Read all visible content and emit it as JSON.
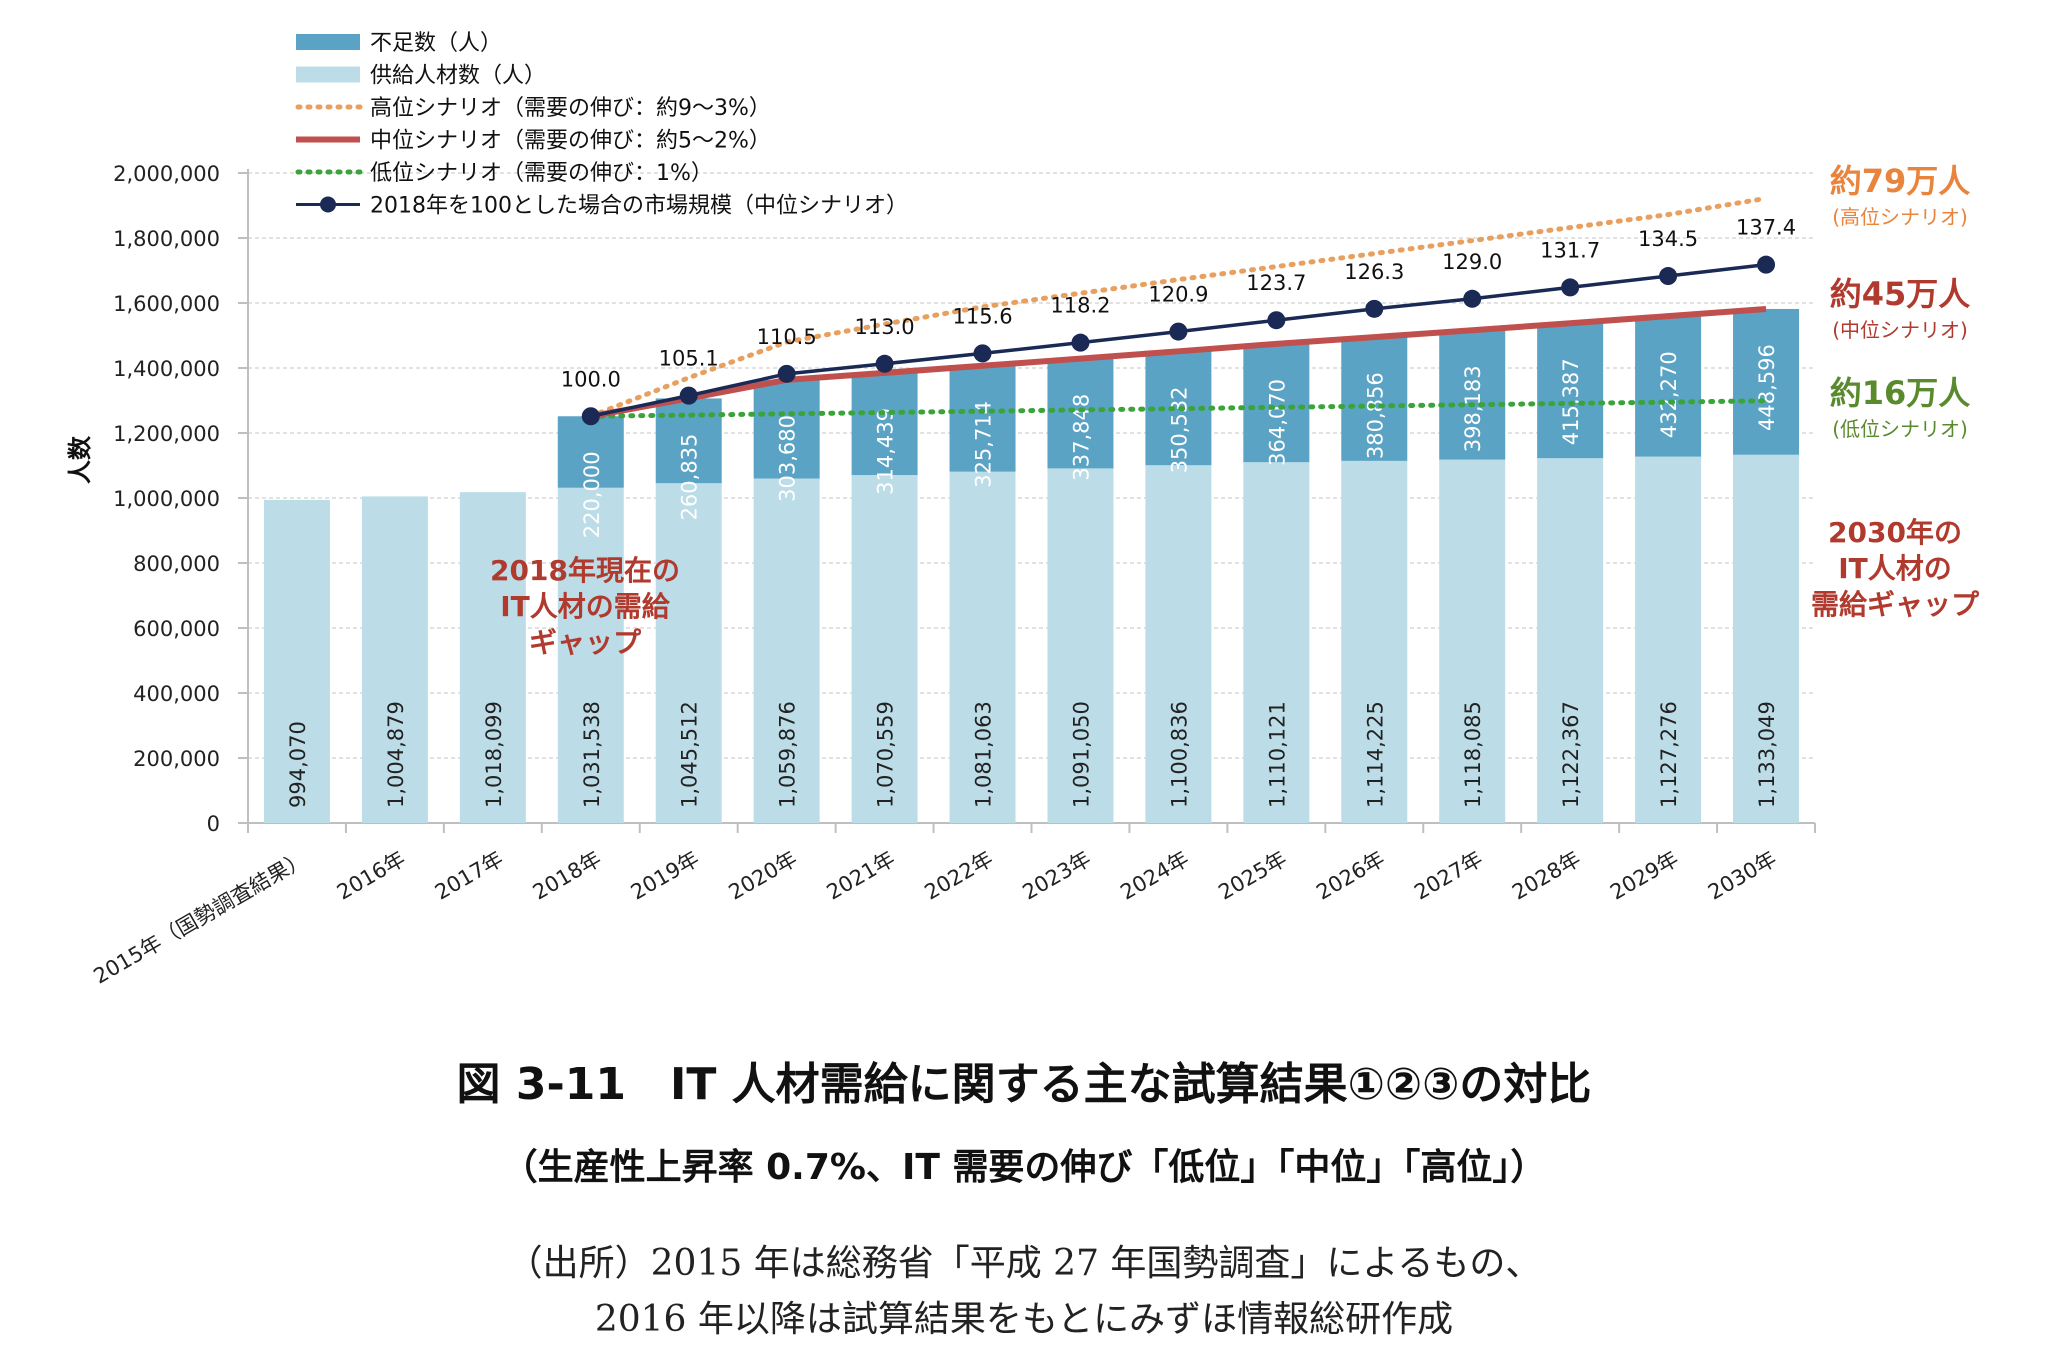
{
  "chart_data": {
    "type": "bar",
    "ylabel": "人数",
    "ylim": [
      0,
      2000000
    ],
    "yticks": [
      0,
      200000,
      400000,
      600000,
      800000,
      1000000,
      1200000,
      1400000,
      1600000,
      1800000,
      2000000
    ],
    "ytick_labels": [
      "0",
      "200,000",
      "400,000",
      "600,000",
      "800,000",
      "1,000,000",
      "1,200,000",
      "1,400,000",
      "1,600,000",
      "1,800,000",
      "2,000,000"
    ],
    "categories": [
      "2015年（国勢調査結果）",
      "2016年",
      "2017年",
      "2018年",
      "2019年",
      "2020年",
      "2021年",
      "2022年",
      "2023年",
      "2024年",
      "2025年",
      "2026年",
      "2027年",
      "2028年",
      "2029年",
      "2030年"
    ],
    "stacked": true,
    "grid": true,
    "legend_position": "top-left",
    "series": [
      {
        "name": "不足数（人）",
        "kind": "bar",
        "color": "#5ba3c4",
        "values": [
          null,
          null,
          null,
          220000,
          260835,
          303680,
          314439,
          325714,
          337848,
          350532,
          364070,
          380856,
          398183,
          415387,
          432270,
          448596
        ],
        "value_labels": [
          "",
          "",
          "",
          "220,000",
          "260,835",
          "303,680",
          "314,439",
          "325,714",
          "337,848",
          "350,532",
          "364,070",
          "380,856",
          "398,183",
          "415,387",
          "432,270",
          "448,596"
        ]
      },
      {
        "name": "供給人材数（人）",
        "kind": "bar",
        "color": "#bcdde8",
        "values": [
          994070,
          1004879,
          1018099,
          1031538,
          1045512,
          1059876,
          1070559,
          1081063,
          1091050,
          1100836,
          1110121,
          1114225,
          1118085,
          1122367,
          1127276,
          1133049
        ],
        "value_labels": [
          "994,070",
          "1,004,879",
          "1,018,099",
          "1,031,538",
          "1,045,512",
          "1,059,876",
          "1,070,559",
          "1,081,063",
          "1,091,050",
          "1,100,836",
          "1,110,121",
          "1,114,225",
          "1,118,085",
          "1,122,367",
          "1,127,276",
          "1,133,049"
        ]
      },
      {
        "name": "高位シナリオ（需要の伸び：約9～3%）",
        "kind": "line-dotted",
        "color": "#e8a060",
        "values": [
          null,
          null,
          null,
          1251538,
          1370000,
          1480000,
          1535000,
          1588000,
          1630000,
          1672000,
          1712000,
          1752000,
          1792000,
          1832000,
          1872000,
          1922000
        ]
      },
      {
        "name": "中位シナリオ（需要の伸び：約5～2%）",
        "kind": "line",
        "color": "#c0504d",
        "values": [
          null,
          null,
          null,
          1251538,
          1306347,
          1363556,
          1384998,
          1406777,
          1428898,
          1451368,
          1474191,
          1495081,
          1516268,
          1537754,
          1559546,
          1581645
        ]
      },
      {
        "name": "低位シナリオ（需要の伸び：1%）",
        "kind": "line-dotted",
        "color": "#3aa43a",
        "values": [
          null,
          null,
          null,
          1251538,
          1255000,
          1259000,
          1263000,
          1267000,
          1271000,
          1275000,
          1279000,
          1283000,
          1287000,
          1291000,
          1295000,
          1299000
        ]
      },
      {
        "name": "2018年を100とした場合の市場規模（中位シナリオ）",
        "kind": "line-markers",
        "color": "#1a2a55",
        "plotted_values": [
          null,
          null,
          null,
          1251538,
          1315000,
          1382000,
          1413000,
          1445000,
          1478000,
          1512000,
          1547000,
          1582000,
          1613000,
          1648000,
          1683000,
          1718000
        ],
        "index_values": [
          null,
          null,
          null,
          100.0,
          105.1,
          110.5,
          113.0,
          115.6,
          118.2,
          120.9,
          123.7,
          126.3,
          129.0,
          131.7,
          134.5,
          137.4
        ],
        "index_labels": [
          "",
          "",
          "",
          "100.0",
          "105.1",
          "110.5",
          "113.0",
          "115.6",
          "118.2",
          "120.9",
          "123.7",
          "126.3",
          "129.0",
          "131.7",
          "134.5",
          "137.4"
        ]
      }
    ],
    "annotations": {
      "gap_2018": [
        "2018年現在の",
        "IT人材の需給",
        "ギャップ"
      ],
      "gap_2030": [
        "2030年の",
        "IT人材の",
        "需給ギャップ"
      ],
      "high_value": "約79万人",
      "high_label": "(高位シナリオ)",
      "mid_value": "約45万人",
      "mid_label": "(中位シナリオ)",
      "low_value": "約16万人",
      "low_label": "(低位シナリオ)"
    }
  },
  "caption": {
    "title": "図 3-11　IT 人材需給に関する主な試算結果①②③の対比",
    "subtitle": "（生産性上昇率 0.7%、IT 需要の伸び「低位」「中位」「高位」）",
    "source_line1": "（出所）2015 年は総務省「平成 27 年国勢調査」によるもの、",
    "source_line2": "2016 年以降は試算結果をもとにみずほ情報総研作成"
  }
}
